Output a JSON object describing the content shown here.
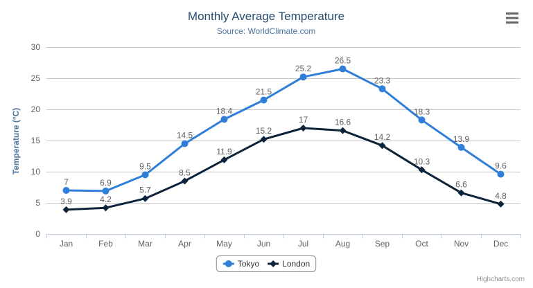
{
  "chart": {
    "credits": "Highcharts.com",
    "menu_icon": "hamburger-menu-icon"
  },
  "chart_data": {
    "type": "line",
    "title": "Monthly Average Temperature",
    "subtitle": "Source: WorldClimate.com",
    "categories": [
      "Jan",
      "Feb",
      "Mar",
      "Apr",
      "May",
      "Jun",
      "Jul",
      "Aug",
      "Sep",
      "Oct",
      "Nov",
      "Dec"
    ],
    "series": [
      {
        "name": "Tokyo",
        "color": "#2f7ed8",
        "marker": "circle",
        "values": [
          7,
          6.9,
          9.5,
          14.5,
          18.4,
          21.5,
          25.2,
          26.5,
          23.3,
          18.3,
          13.9,
          9.6
        ]
      },
      {
        "name": "London",
        "color": "#0d233a",
        "marker": "diamond",
        "values": [
          3.9,
          4.2,
          5.7,
          8.5,
          11.9,
          15.2,
          17,
          16.6,
          14.2,
          10.3,
          6.6,
          4.8
        ]
      }
    ],
    "xlabel": "",
    "ylabel": "Temperature (°C)",
    "ylim": [
      0,
      30
    ],
    "yticks": [
      0,
      5,
      10,
      15,
      20,
      25,
      30
    ],
    "grid": true,
    "data_labels": true,
    "legend_position": "bottom-center"
  },
  "colors": {
    "title": "#274b6d",
    "subtitle": "#4d759e",
    "y_axis_title": "#4d759e",
    "axis_labels": "#606060",
    "data_labels": "#606060",
    "grid_line": "#c6c6c6",
    "axis_line": "#c0d0e0",
    "legend_border": "#909090",
    "legend_text": "#333333",
    "credits": "#909090",
    "menu_icon": "#666666",
    "background": "#ffffff"
  }
}
